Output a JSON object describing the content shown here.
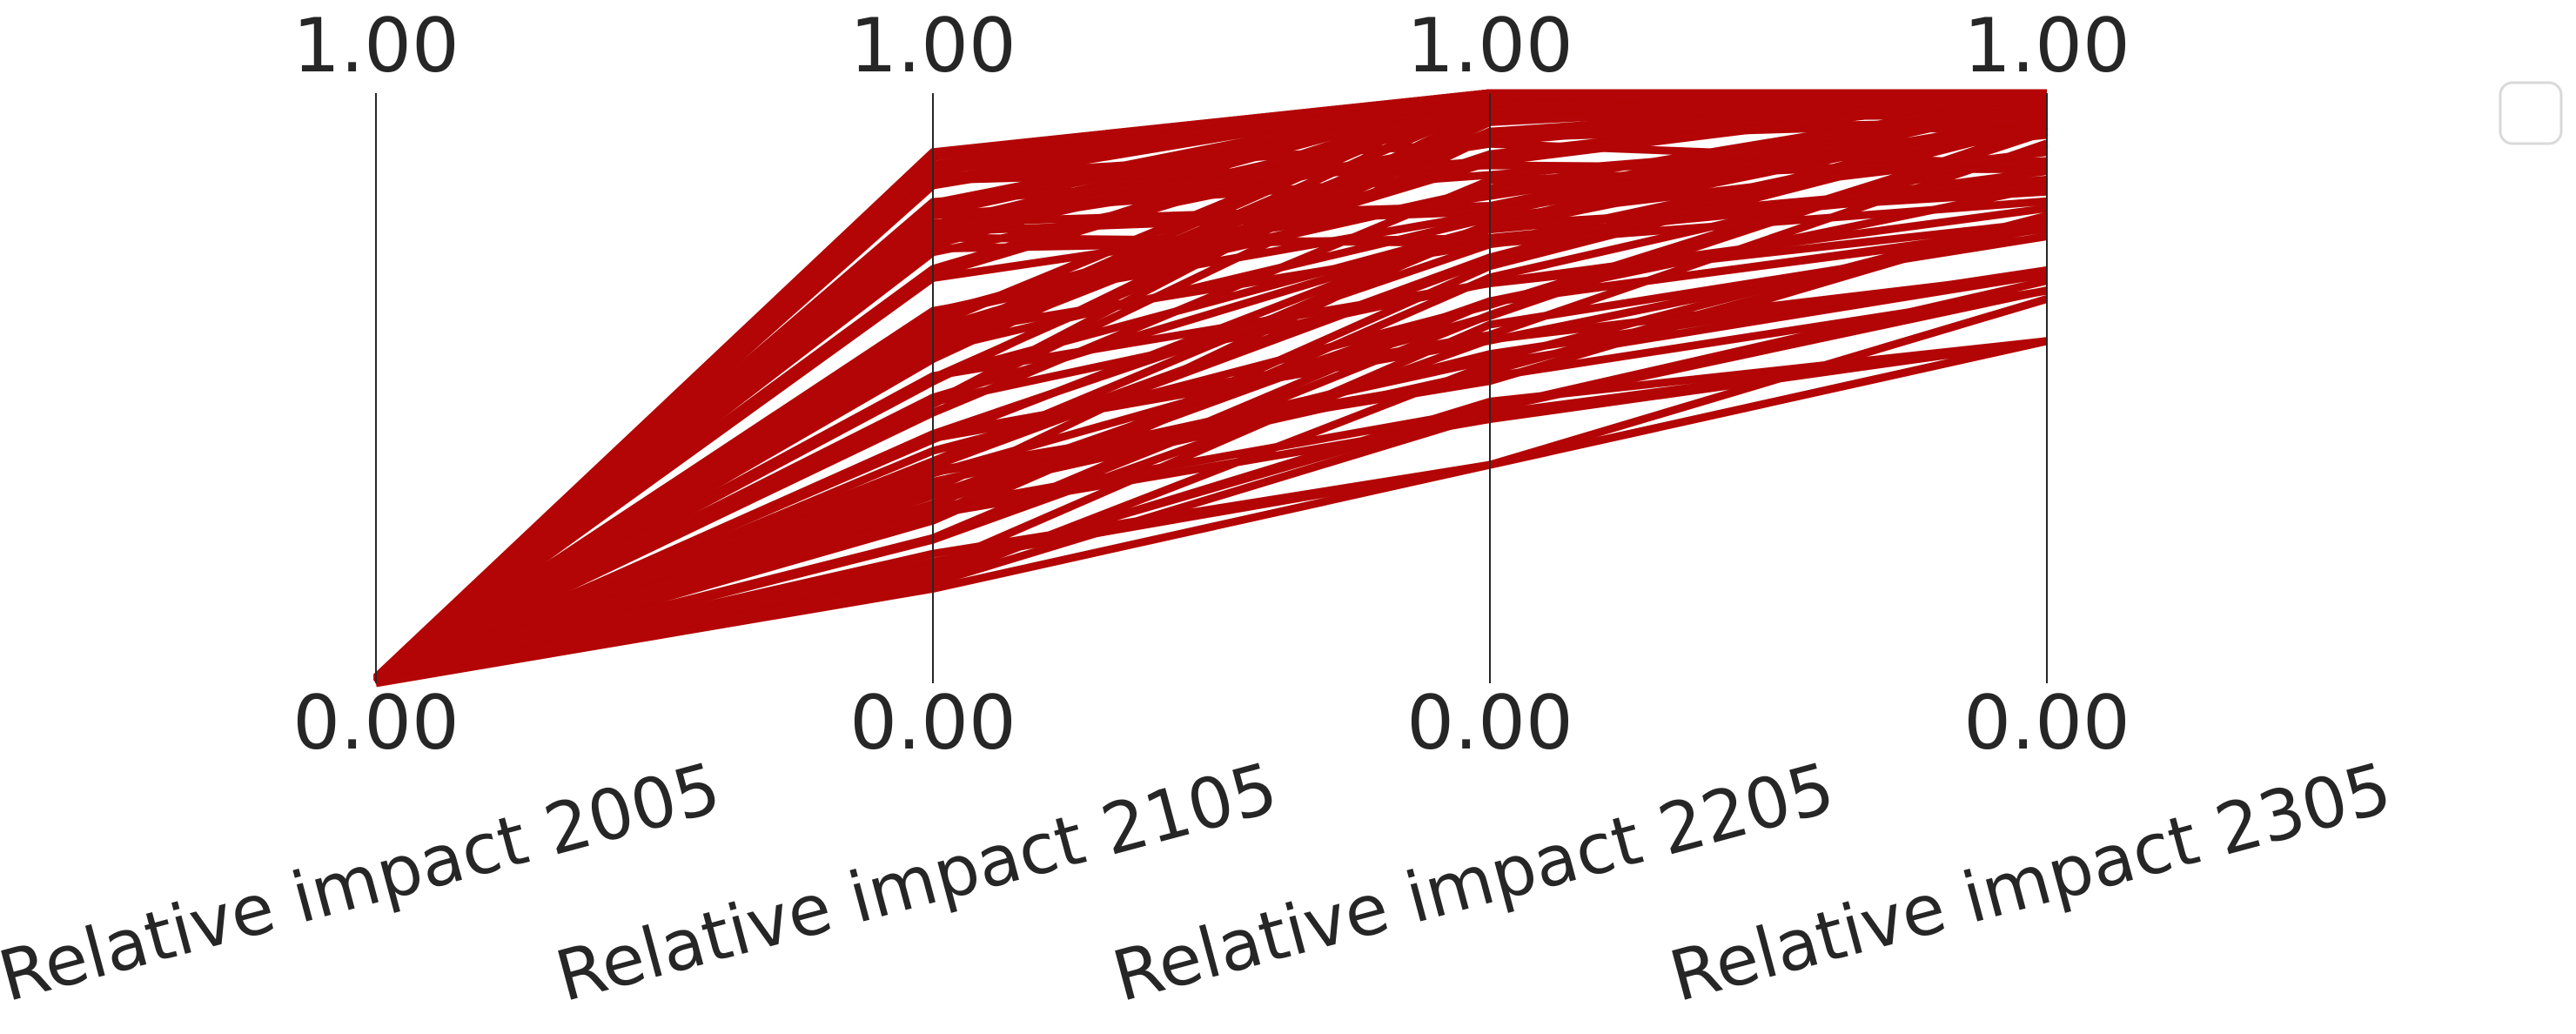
{
  "chart_data": {
    "type": "parallel_coordinates",
    "axes": [
      {
        "label": "Relative impact 2005",
        "min_label": "0.00",
        "max_label": "1.00"
      },
      {
        "label": "Relative impact 2105",
        "min_label": "0.00",
        "max_label": "1.00"
      },
      {
        "label": "Relative impact 2205",
        "min_label": "0.00",
        "max_label": "1.00"
      },
      {
        "label": "Relative impact 2305",
        "min_label": "0.00",
        "max_label": "1.00"
      }
    ],
    "range": [
      0,
      1
    ],
    "line_color": "#b30505",
    "series_count": 90,
    "value_ranges": {
      "Relative impact 2005": [
        0.0,
        0.01
      ],
      "Relative impact 2105": [
        0.16,
        0.9
      ],
      "Relative impact 2205": [
        0.37,
        1.0
      ],
      "Relative impact 2305": [
        0.58,
        1.0
      ]
    },
    "legend": {
      "placement": "top-right",
      "entries": []
    },
    "grid": false
  }
}
